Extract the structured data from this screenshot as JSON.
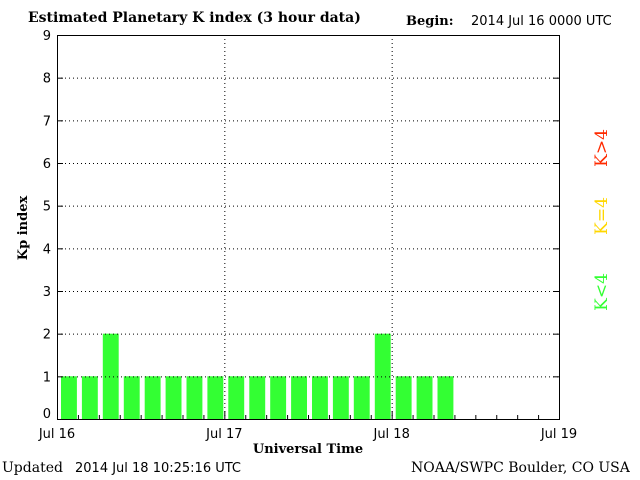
{
  "header": {
    "title": "Estimated Planetary K index (3 hour data)",
    "begin_label": "Begin:",
    "begin_value": "2014 Jul 16 0000 UTC"
  },
  "footer": {
    "updated_label": "Updated",
    "updated_value": "2014 Jul 18 10:25:16 UTC",
    "credit": "NOAA/SWPC Boulder, CO USA"
  },
  "legend": [
    {
      "label": "K>4",
      "color": "#ff2a00"
    },
    {
      "label": "K=4",
      "color": "#ffd700"
    },
    {
      "label": "K<4",
      "color": "#33ff33"
    }
  ],
  "chart_data": {
    "type": "bar",
    "title": "Estimated Planetary K index (3 hour data)",
    "xlabel": "Universal Time",
    "ylabel": "Kp index",
    "ylim": [
      0,
      9
    ],
    "yticks": [
      0,
      1,
      2,
      3,
      4,
      5,
      6,
      7,
      8,
      9
    ],
    "xlim_days": [
      0,
      3
    ],
    "xticks": [
      "Jul 16",
      "Jul 17",
      "Jul 18",
      "Jul 19"
    ],
    "interval_hours": 3,
    "grid": true,
    "series": [
      {
        "values": [
          1,
          1,
          2,
          1,
          1,
          1,
          1,
          1,
          1,
          1,
          1,
          1,
          1,
          1,
          1,
          2,
          1,
          1,
          1
        ]
      }
    ],
    "bar_color": "#33ff33"
  }
}
